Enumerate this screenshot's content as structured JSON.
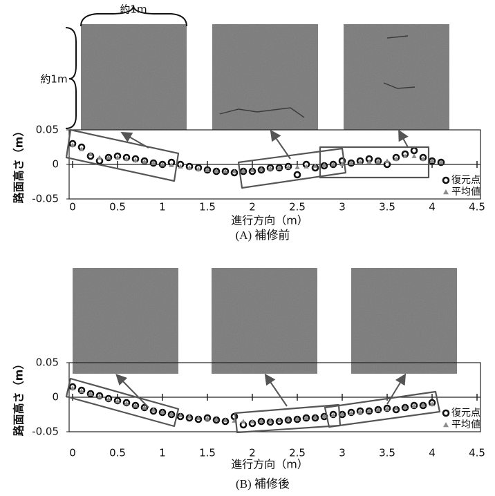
{
  "chart_data": [
    {
      "type": "scatter",
      "title": "(A) 補修前",
      "xlabel": "進行方向（m）",
      "ylabel": "路面高さ（m）",
      "annotations": [
        "約1m",
        "約1m"
      ],
      "xlim": [
        0,
        4.5
      ],
      "xticks": [
        0,
        0.5,
        1,
        1.5,
        2,
        2.5,
        3,
        3.5,
        4,
        4.5
      ],
      "ylim": [
        -0.05,
        0.05
      ],
      "yticks": [
        0.05,
        0,
        -0.05
      ],
      "legend": "lower right",
      "x": [
        0,
        0.1,
        0.2,
        0.3,
        0.4,
        0.5,
        0.6,
        0.7,
        0.8,
        0.9,
        1,
        1.1,
        1.2,
        1.3,
        1.4,
        1.5,
        1.6,
        1.7,
        1.8,
        1.9,
        2,
        2.1,
        2.2,
        2.3,
        2.4,
        2.5,
        2.6,
        2.7,
        2.8,
        2.9,
        3,
        3.1,
        3.2,
        3.3,
        3.4,
        3.5,
        3.6,
        3.7,
        3.8,
        3.9,
        4,
        4.1
      ],
      "series": [
        {
          "name": "復元点",
          "color": "#111111",
          "values": [
            0.03,
            0.025,
            0.012,
            0.005,
            0.01,
            0.012,
            0.01,
            0.008,
            0.005,
            0.002,
            0,
            0.003,
            0,
            -0.003,
            -0.005,
            -0.008,
            -0.01,
            -0.01,
            -0.012,
            -0.01,
            -0.01,
            -0.008,
            -0.005,
            -0.005,
            -0.003,
            -0.015,
            0,
            -0.005,
            -0.002,
            0,
            0.005,
            0.002,
            0.005,
            0.008,
            0.005,
            0,
            0.01,
            0.015,
            0.02,
            0.01,
            0.005,
            0.003
          ]
        },
        {
          "name": "平均値",
          "color": "#8c8c8c",
          "values": [
            0.028,
            0.022,
            0.015,
            0.01,
            0.01,
            0.01,
            0.008,
            0.006,
            0.004,
            0.002,
            0,
            -0.001,
            -0.003,
            -0.005,
            -0.007,
            -0.008,
            -0.009,
            -0.01,
            -0.01,
            -0.009,
            -0.008,
            -0.007,
            -0.006,
            -0.005,
            -0.004,
            -0.004,
            -0.003,
            -0.002,
            -0.001,
            0,
            0.001,
            0.002,
            0.003,
            0.004,
            0.004,
            0.005,
            0.008,
            0.012,
            0.012,
            0.008,
            0.005,
            0.003
          ]
        }
      ]
    },
    {
      "type": "scatter",
      "title": "(B) 補修後",
      "xlabel": "進行方向（m）",
      "ylabel": "路面高さ（m）",
      "xlim": [
        0,
        4.5
      ],
      "xticks": [
        0,
        0.5,
        1,
        1.5,
        2,
        2.5,
        3,
        3.5,
        4,
        4.5
      ],
      "ylim": [
        -0.05,
        0.05
      ],
      "yticks": [
        0.05,
        0,
        -0.05
      ],
      "legend": "lower right",
      "x": [
        0,
        0.1,
        0.2,
        0.3,
        0.4,
        0.5,
        0.6,
        0.7,
        0.8,
        0.9,
        1,
        1.1,
        1.2,
        1.3,
        1.4,
        1.5,
        1.6,
        1.7,
        1.8,
        1.9,
        2,
        2.1,
        2.2,
        2.3,
        2.4,
        2.5,
        2.6,
        2.7,
        2.8,
        2.9,
        3,
        3.1,
        3.2,
        3.3,
        3.4,
        3.5,
        3.6,
        3.7,
        3.8,
        3.9,
        4
      ],
      "series": [
        {
          "name": "復元点",
          "color": "#111111",
          "values": [
            0.015,
            0.01,
            0.005,
            0.002,
            -0.002,
            -0.005,
            -0.008,
            -0.012,
            -0.015,
            -0.02,
            -0.022,
            -0.025,
            -0.028,
            -0.03,
            -0.032,
            -0.03,
            -0.033,
            -0.035,
            -0.028,
            -0.04,
            -0.038,
            -0.035,
            -0.036,
            -0.035,
            -0.033,
            -0.032,
            -0.03,
            -0.03,
            -0.028,
            -0.025,
            -0.025,
            -0.022,
            -0.02,
            -0.02,
            -0.018,
            -0.016,
            -0.018,
            -0.015,
            -0.012,
            -0.012,
            -0.008
          ]
        },
        {
          "name": "平均値",
          "color": "#8c8c8c",
          "values": [
            0.013,
            0.009,
            0.005,
            0.001,
            -0.003,
            -0.006,
            -0.009,
            -0.012,
            -0.015,
            -0.018,
            -0.021,
            -0.024,
            -0.026,
            -0.028,
            -0.03,
            -0.031,
            -0.032,
            -0.033,
            -0.034,
            -0.035,
            -0.035,
            -0.034,
            -0.034,
            -0.033,
            -0.032,
            -0.031,
            -0.03,
            -0.029,
            -0.027,
            -0.026,
            -0.024,
            -0.023,
            -0.021,
            -0.02,
            -0.018,
            -0.017,
            -0.016,
            -0.014,
            -0.013,
            -0.011,
            -0.01
          ]
        }
      ]
    }
  ]
}
